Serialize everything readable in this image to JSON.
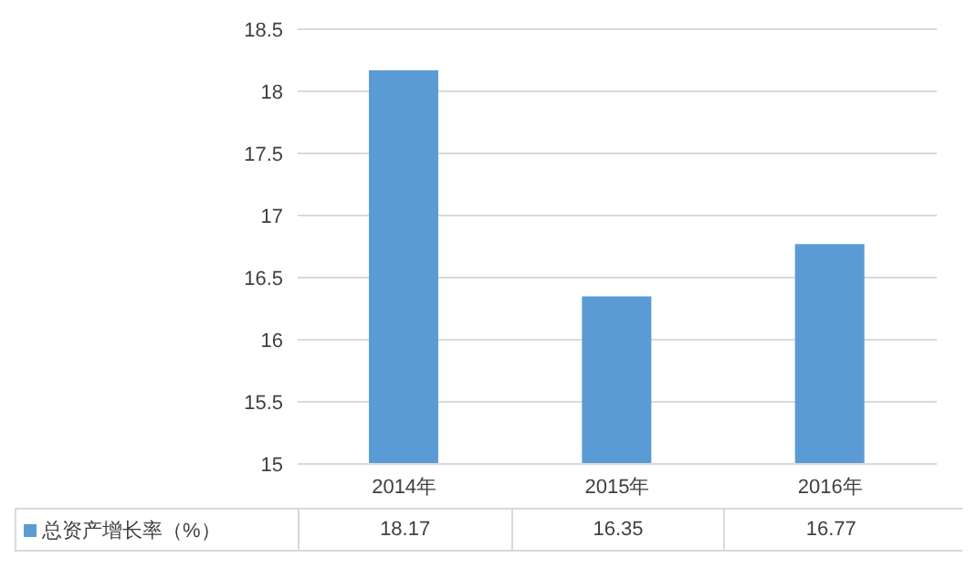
{
  "chart_data": {
    "type": "bar",
    "categories": [
      "2014年",
      "2015年",
      "2016年"
    ],
    "series": [
      {
        "name": "总资产增长率（%）",
        "color": "#5b9bd5",
        "values": [
          18.17,
          16.35,
          16.77
        ]
      }
    ],
    "ylim": [
      15,
      18.5
    ],
    "yticks": [
      15,
      15.5,
      16,
      16.5,
      17,
      17.5,
      18,
      18.5
    ],
    "grid": "y",
    "legend": "bottom",
    "data_labels": true
  }
}
